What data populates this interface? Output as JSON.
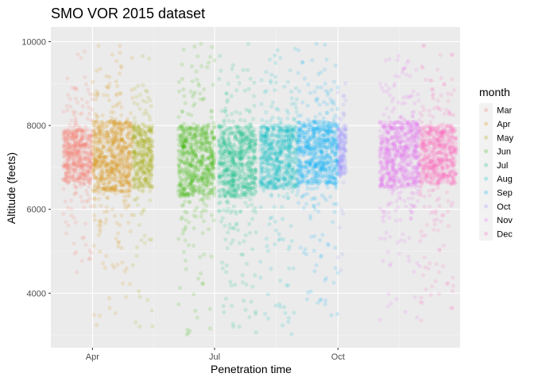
{
  "chart_data": {
    "type": "scatter",
    "title": "SMO VOR 2015 dataset",
    "xlabel": "Penetration time",
    "ylabel": "Altitude (feets)",
    "x_type": "date",
    "x_range": [
      "2015-03-01",
      "2015-12-31"
    ],
    "xticks": [
      {
        "value": "2015-04-01",
        "label": "Apr"
      },
      {
        "value": "2015-07-01",
        "label": "Jul"
      },
      {
        "value": "2015-10-01",
        "label": "Oct"
      }
    ],
    "ylim": [
      2700,
      10350
    ],
    "yticks": [
      4000,
      6000,
      8000,
      10000
    ],
    "grid": true,
    "point_alpha": 0.15,
    "legend": {
      "title": "month",
      "position": "right",
      "entries": [
        "Mar",
        "Apr",
        "May",
        "Jun",
        "Jul",
        "Aug",
        "Sep",
        "Oct",
        "Nov",
        "Dec"
      ]
    },
    "series": [
      {
        "name": "Mar",
        "color": "#F8766D",
        "start": "2015-03-10",
        "end": "2015-03-31",
        "core": [
          6600,
          7900
        ],
        "spread": [
          4300,
          9900
        ]
      },
      {
        "name": "Apr",
        "color": "#D89000",
        "start": "2015-04-01",
        "end": "2015-04-30",
        "core": [
          6400,
          8100
        ],
        "spread": [
          3200,
          9900
        ]
      },
      {
        "name": "May",
        "color": "#A3A500",
        "start": "2015-05-01",
        "end": "2015-05-15",
        "core": [
          6500,
          8000
        ],
        "spread": [
          3100,
          9700
        ]
      },
      {
        "name": "Jun",
        "color": "#39B600",
        "start": "2015-06-04",
        "end": "2015-06-30",
        "core": [
          6300,
          8000
        ],
        "spread": [
          3000,
          9950
        ]
      },
      {
        "name": "Jul",
        "color": "#00BF7D",
        "start": "2015-07-04",
        "end": "2015-07-31",
        "core": [
          6300,
          8000
        ],
        "spread": [
          3000,
          9950
        ]
      },
      {
        "name": "Aug",
        "color": "#00BFC4",
        "start": "2015-08-04",
        "end": "2015-08-31",
        "core": [
          6500,
          8000
        ],
        "spread": [
          3000,
          9950
        ]
      },
      {
        "name": "Sep",
        "color": "#00B0F6",
        "start": "2015-09-01",
        "end": "2015-09-30",
        "core": [
          6600,
          8100
        ],
        "spread": [
          3300,
          9950
        ]
      },
      {
        "name": "Oct",
        "color": "#9590FF",
        "start": "2015-10-01",
        "end": "2015-10-06",
        "core": [
          6800,
          8000
        ],
        "spread": [
          4500,
          9300
        ]
      },
      {
        "name": "Nov",
        "color": "#E76BF3",
        "start": "2015-11-01",
        "end": "2015-11-30",
        "core": [
          6500,
          8100
        ],
        "spread": [
          3300,
          9900
        ]
      },
      {
        "name": "Dec",
        "color": "#FF62BC",
        "start": "2015-12-01",
        "end": "2015-12-27",
        "core": [
          6600,
          8000
        ],
        "spread": [
          3300,
          9950
        ]
      }
    ]
  }
}
